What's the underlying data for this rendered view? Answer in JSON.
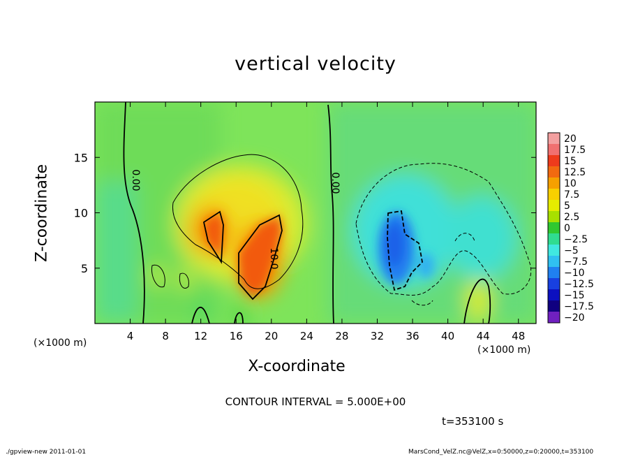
{
  "chart_data": {
    "type": "heatmap",
    "title": "vertical velocity",
    "xlabel": "X-coordinate",
    "ylabel": "Z-coordinate",
    "x_unit": "(×1000 m)",
    "z_unit": "(×1000 m)",
    "xlim": [
      0,
      50
    ],
    "ylim": [
      0,
      20
    ],
    "x_ticks": [
      4,
      8,
      12,
      16,
      20,
      24,
      28,
      32,
      36,
      40,
      44,
      48
    ],
    "y_ticks": [
      5,
      10,
      15
    ],
    "colorbar": {
      "levels": [
        "20",
        "17.5",
        "15",
        "12.5",
        "10",
        "7.5",
        "5",
        "2.5",
        "0",
        "−2.5",
        "−5",
        "−7.5",
        "−10",
        "−12.5",
        "−15",
        "−17.5",
        "−20"
      ],
      "colors": [
        "#f3a0a0",
        "#f07070",
        "#ee3b1c",
        "#f26a10",
        "#f6a000",
        "#f8d000",
        "#e6ec00",
        "#a8e000",
        "#30c830",
        "#30dc90",
        "#40e8e0",
        "#30c0f0",
        "#2080f0",
        "#1840e0",
        "#0c10c0",
        "#100080",
        "#7020c0"
      ]
    },
    "contour_labels": [
      "0.00",
      "0.00",
      "10.0"
    ],
    "contour_interval": "CONTOUR INTERVAL = 5.000E+00",
    "time": "t=353100 s",
    "footer_left": "./gpview-new 2011-01-01",
    "footer_right": "MarsCond_VelZ.nc@VelZ,x=0:50000,z=0:20000,t=353100"
  }
}
